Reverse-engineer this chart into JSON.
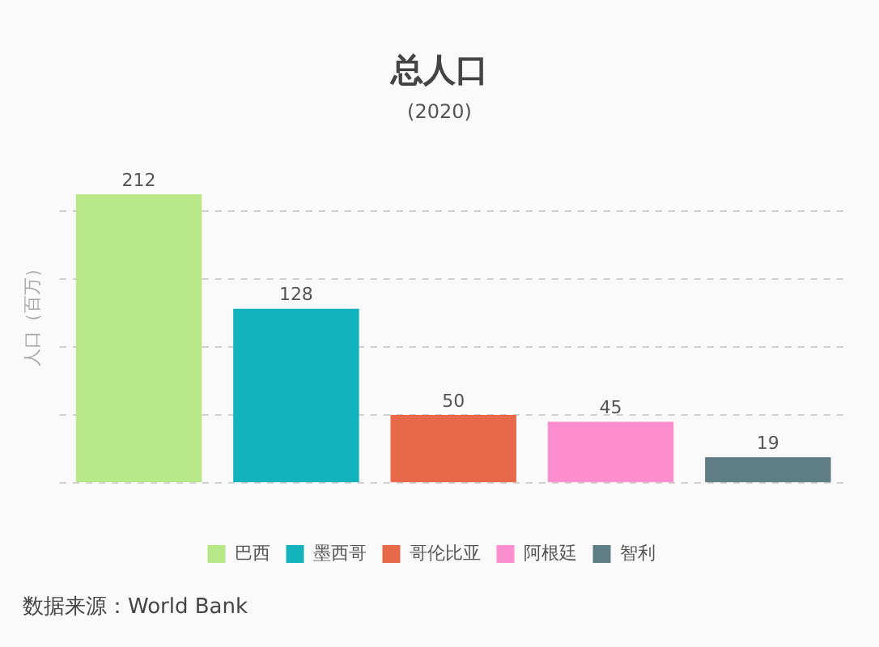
{
  "chart_data": {
    "type": "bar",
    "title": "总人口",
    "subtitle": "(2020)",
    "ylabel": "人口（百万）",
    "categories": [
      null,
      null,
      null,
      null,
      null
    ],
    "series": [
      {
        "name": "巴西",
        "color": "#b7e786",
        "values": [
          212,
          null,
          null,
          null,
          null
        ]
      },
      {
        "name": "墨西哥",
        "color": "#12b3bc",
        "values": [
          null,
          128,
          null,
          null,
          null
        ]
      },
      {
        "name": "哥伦比亚",
        "color": "#e8694a",
        "values": [
          null,
          null,
          50,
          null,
          null
        ]
      },
      {
        "name": "阿根廷",
        "color": "#fd8fd0",
        "values": [
          null,
          null,
          null,
          45,
          null
        ]
      },
      {
        "name": "智利",
        "color": "#5e7d84",
        "values": [
          null,
          null,
          null,
          null,
          19
        ]
      }
    ],
    "stacked": true,
    "yticks": [
      {
        "value": 0,
        "label": null
      },
      {
        "value": 50,
        "label": null
      },
      {
        "value": 100,
        "label": null
      },
      {
        "value": 150,
        "label": null
      },
      {
        "value": 200,
        "label": null
      }
    ],
    "grid": "y",
    "data_labels": true,
    "legend": "bottom",
    "annotations": [
      "数据来源：World Bank"
    ]
  }
}
